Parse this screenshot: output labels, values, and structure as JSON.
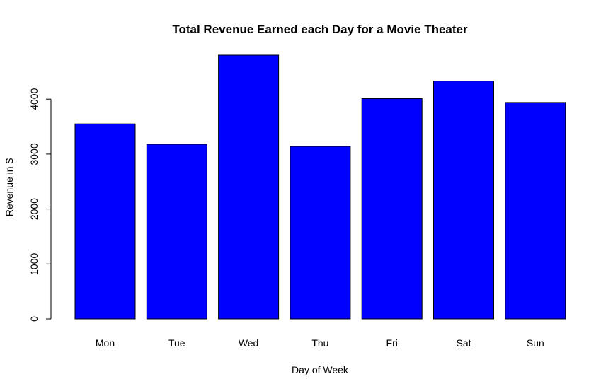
{
  "chart_data": {
    "type": "bar",
    "title": "Total Revenue Earned each Day for a Movie Theater",
    "xlabel": "Day of Week",
    "ylabel": "Revenue in $",
    "categories": [
      "Mon",
      "Tue",
      "Wed",
      "Thu",
      "Fri",
      "Sat",
      "Sun"
    ],
    "values": [
      3550,
      3180,
      4800,
      3140,
      4010,
      4330,
      3940
    ],
    "ylim": [
      0,
      4800
    ],
    "yticks": [
      0,
      1000,
      2000,
      3000,
      4000
    ],
    "bar_color": "#0000ff",
    "bar_border_color": "#000000",
    "grid": false,
    "legend": "none"
  }
}
